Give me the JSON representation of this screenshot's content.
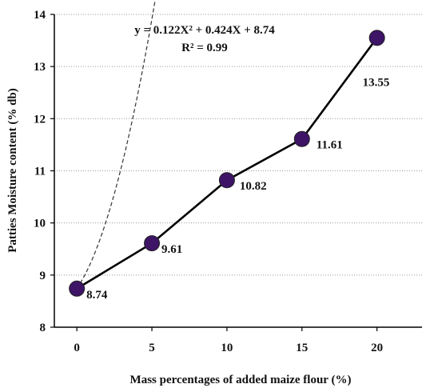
{
  "chart_data": {
    "type": "line",
    "xlabel": "Mass percentages of added maize flour (%)",
    "ylabel": "Patties Moisture content  (% db)",
    "x": [
      0,
      5,
      10,
      15,
      20
    ],
    "series": [
      {
        "values": [
          8.74,
          9.61,
          10.82,
          11.61,
          13.55
        ]
      }
    ],
    "data_labels": [
      "8.74",
      "9.61",
      "10.82",
      "11.61",
      "13.55"
    ],
    "x_ticks": [
      "0",
      "5",
      "10",
      "15",
      "20"
    ],
    "y_ticks": [
      "8",
      "9",
      "10",
      "11",
      "12",
      "13",
      "14"
    ],
    "xlim": [
      -1.5,
      23
    ],
    "ylim": [
      8,
      14
    ],
    "grid": "horizontal dotted",
    "trendline": {
      "type": "polynomial",
      "coefficients": [
        0.122,
        0.424,
        8.74
      ],
      "equation": "y = 0.122X² + 0.424X + 8.74",
      "r_squared": "R² = 0.99"
    },
    "colors": {
      "marker": "#3d1466",
      "line": "#000000",
      "grid": "#9a9a9a"
    }
  }
}
